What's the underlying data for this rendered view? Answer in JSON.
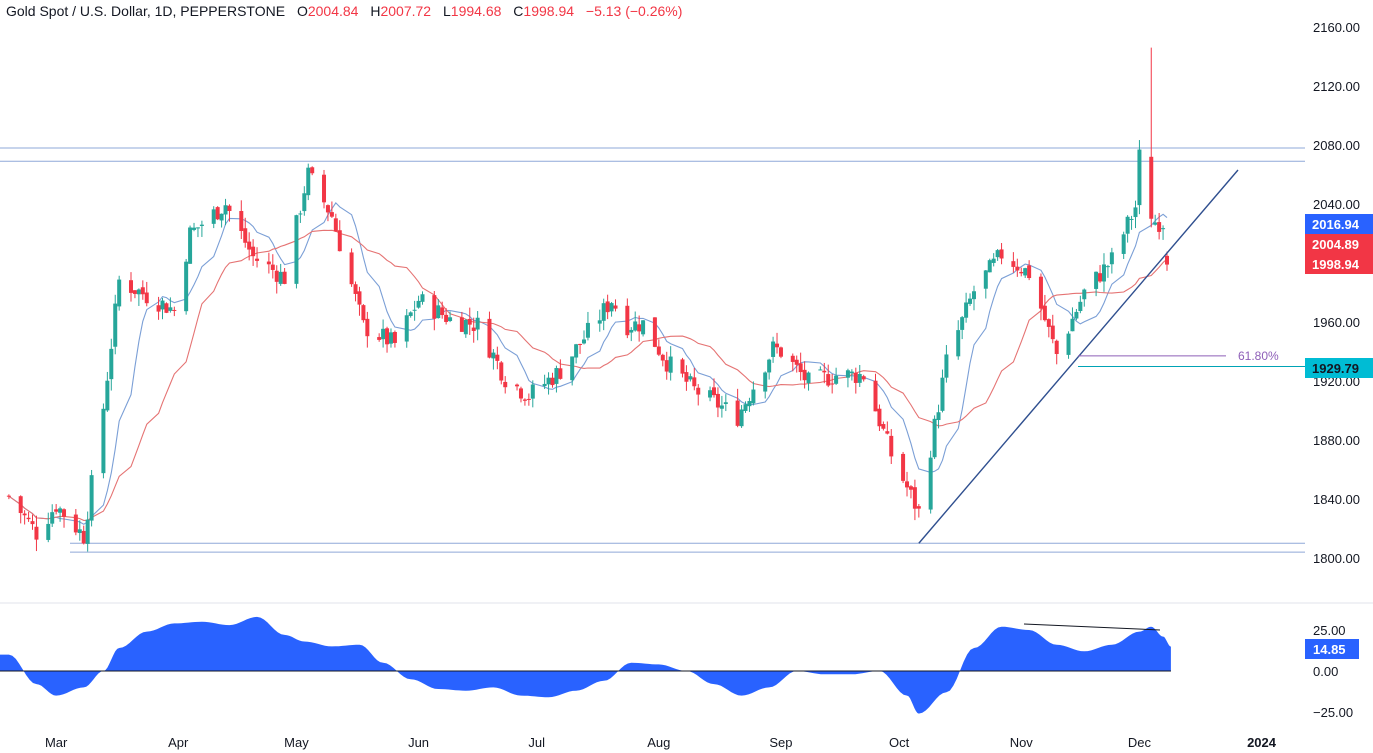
{
  "header": {
    "symbol": "Gold Spot / U.S. Dollar, 1D, PEPPERSTONE",
    "open_label": "O",
    "open": "2004.84",
    "high_label": "H",
    "high": "2007.72",
    "low_label": "L",
    "low": "1994.68",
    "close_label": "C",
    "close": "1998.94",
    "change": "−5.13 (−0.26%)"
  },
  "colors": {
    "up": "#26a69a",
    "down": "#f23645",
    "ma_fast": "#7b9fd6",
    "ma_slow": "#e57373",
    "hline": "#8fa8d8",
    "trendline": "#2f4f8f",
    "fib": "#8e5fb8",
    "support_line": "#00a3b5",
    "oscillator": "#2962ff",
    "badge_blue": "#2962ff",
    "badge_red": "#f23645",
    "badge_cyan": "#00bcd4",
    "axis_text": "#131722"
  },
  "annotations": {
    "fib_label": "61.80%"
  },
  "chart_data": [
    {
      "type": "candlestick",
      "title": "Gold Spot / U.S. Dollar, 1D, PEPPERSTONE",
      "ylim": [
        1795,
        2170
      ],
      "y_ticks": [
        "2160.00",
        "2120.00",
        "2080.00",
        "2040.00",
        "2000.00",
        "1960.00",
        "1920.00",
        "1880.00",
        "1840.00",
        "1800.00"
      ],
      "y_tick_values": [
        2160,
        2120,
        2080,
        2040,
        2000,
        1960,
        1920,
        1880,
        1840,
        1800
      ],
      "x_ticks": [
        "Mar",
        "Apr",
        "May",
        "Jun",
        "Jul",
        "Aug",
        "Sep",
        "Oct",
        "Nov",
        "Dec",
        "2024"
      ],
      "price_badges": [
        {
          "label": "2016.94",
          "value": 2016.94,
          "color": "blue"
        },
        {
          "label": "2004.89",
          "value": 2004.89,
          "color": "red"
        },
        {
          "label": "1998.94",
          "value": 1998.94,
          "color": "red"
        },
        {
          "label": "1929.79",
          "value": 1929.79,
          "color": "cyan"
        }
      ],
      "horizontal_lines": [
        2078,
        2069,
        1810,
        1804
      ],
      "fib_level": {
        "label": "61.80%",
        "value": 1937
      },
      "support_level": 1929.79,
      "trendline": {
        "from": [
          "Oct 6",
          1810
        ],
        "to": [
          "Dec 28",
          2063
        ]
      },
      "anchor_points": [
        [
          "Feb 17",
          1842
        ],
        [
          "Feb 24",
          1817
        ],
        [
          "Mar 1",
          1836
        ],
        [
          "Mar 8",
          1815
        ],
        [
          "Mar 13",
          1902
        ],
        [
          "Mar 17",
          1988
        ],
        [
          "Mar 24",
          1978
        ],
        [
          "Mar 31",
          1968
        ],
        [
          "Apr 4",
          2020
        ],
        [
          "Apr 13",
          2040
        ],
        [
          "Apr 20",
          2004
        ],
        [
          "Apr 28",
          1990
        ],
        [
          "May 3",
          2050
        ],
        [
          "May 4",
          2060
        ],
        [
          "May 10",
          2032
        ],
        [
          "May 18",
          1957
        ],
        [
          "May 26",
          1945
        ],
        [
          "Jun 1",
          1975
        ],
        [
          "Jun 9",
          1962
        ],
        [
          "Jun 16",
          1958
        ],
        [
          "Jun 23",
          1922
        ],
        [
          "Jun 29",
          1910
        ],
        [
          "Jul 7",
          1927
        ],
        [
          "Jul 20",
          1975
        ],
        [
          "Jul 24",
          1958
        ],
        [
          "Jul 28",
          1959
        ],
        [
          "Aug 3",
          1933
        ],
        [
          "Aug 10",
          1914
        ],
        [
          "Aug 21",
          1896
        ],
        [
          "Aug 30",
          1942
        ],
        [
          "Sep 1",
          1940
        ],
        [
          "Sep 8",
          1919
        ],
        [
          "Sep 15",
          1924
        ],
        [
          "Sep 22",
          1924
        ],
        [
          "Sep 29",
          1870
        ],
        [
          "Oct 6",
          1831
        ],
        [
          "Oct 13",
          1933
        ],
        [
          "Oct 20",
          1981
        ],
        [
          "Oct 27",
          2006
        ],
        [
          "Nov 3",
          1993
        ],
        [
          "Nov 10",
          1938
        ],
        [
          "Nov 17",
          1980
        ],
        [
          "Nov 24",
          2002
        ],
        [
          "Nov 30",
          2038
        ],
        [
          "Dec 1",
          2072
        ],
        [
          "Dec 4",
          2028
        ],
        [
          "Dec 7",
          2028
        ],
        [
          "Dec 8",
          2004
        ],
        [
          "Dec 9",
          1999
        ]
      ]
    },
    {
      "type": "area",
      "title": "",
      "ylim": [
        -30,
        32
      ],
      "y_ticks": [
        "25.00",
        "0.00",
        "−25.00"
      ],
      "y_tick_values": [
        25,
        0,
        -25
      ],
      "current_value": "14.85",
      "anchor_points": [
        [
          "Feb 17",
          10
        ],
        [
          "Feb 24",
          -8
        ],
        [
          "Mar 1",
          -15
        ],
        [
          "Mar 8",
          -10
        ],
        [
          "Mar 13",
          0
        ],
        [
          "Mar 17",
          14
        ],
        [
          "Mar 24",
          24
        ],
        [
          "Mar 31",
          29
        ],
        [
          "Apr 7",
          30
        ],
        [
          "Apr 14",
          28
        ],
        [
          "Apr 21",
          33
        ],
        [
          "Apr 28",
          22
        ],
        [
          "May 3",
          18
        ],
        [
          "May 10",
          15
        ],
        [
          "May 17",
          16
        ],
        [
          "May 23",
          5
        ],
        [
          "May 30",
          -5
        ],
        [
          "Jun 6",
          -11
        ],
        [
          "Jun 13",
          -12
        ],
        [
          "Jun 20",
          -10
        ],
        [
          "Jun 27",
          -15
        ],
        [
          "Jul 4",
          -16
        ],
        [
          "Jul 11",
          -12
        ],
        [
          "Jul 18",
          -6
        ],
        [
          "Jul 25",
          5
        ],
        [
          "Aug 1",
          4
        ],
        [
          "Aug 8",
          0
        ],
        [
          "Aug 15",
          -8
        ],
        [
          "Aug 22",
          -15
        ],
        [
          "Aug 29",
          -10
        ],
        [
          "Sep 5",
          0
        ],
        [
          "Sep 12",
          -2
        ],
        [
          "Sep 19",
          -2
        ],
        [
          "Sep 26",
          0
        ],
        [
          "Oct 3",
          -15
        ],
        [
          "Oct 6",
          -26
        ],
        [
          "Oct 13",
          -13
        ],
        [
          "Oct 20",
          14
        ],
        [
          "Oct 27",
          27
        ],
        [
          "Nov 3",
          25
        ],
        [
          "Nov 10",
          16
        ],
        [
          "Nov 17",
          12
        ],
        [
          "Nov 24",
          16
        ],
        [
          "Dec 1",
          24
        ],
        [
          "Dec 4",
          27
        ],
        [
          "Dec 7",
          21
        ],
        [
          "Dec 9",
          14.85
        ]
      ],
      "divergence_line": {
        "from": [
          "Oct 27",
          29
        ],
        "to": [
          "Dec 4",
          26
        ]
      }
    }
  ]
}
